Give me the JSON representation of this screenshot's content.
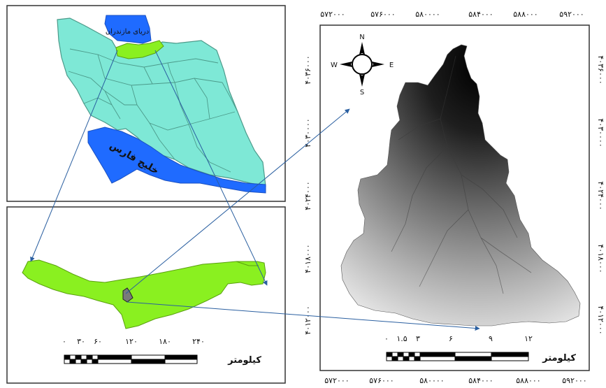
{
  "iran_map": {
    "caspian_label": "دریای مازندران",
    "gulf_label": "خلیج فارس",
    "colors": {
      "land": "#7ee8d6",
      "water": "#1f6bff",
      "province": "#8af020",
      "border": "#4c9a8a"
    }
  },
  "province_map": {
    "scale_ticks": [
      "۰",
      "۳۰",
      "۶۰",
      "۱۲۰",
      "۱۸۰",
      "۲۴۰"
    ],
    "scale_unit": "کیلومتر",
    "colors": {
      "land": "#8af020",
      "outline": "#5aa010"
    }
  },
  "watershed_map": {
    "top_ticks": [
      "۵۷۲۰۰۰",
      "۵۷۶۰۰۰",
      "۵۸۰۰۰۰",
      "۵۸۴۰۰۰",
      "۵۸۸۰۰۰",
      "۵۹۲۰۰۰"
    ],
    "bottom_ticks": [
      "۵۷۲۰۰۰",
      "۵۷۶۰۰۰",
      "۵۸۰۰۰۰",
      "۵۸۴۰۰۰",
      "۵۸۸۰۰۰",
      "۵۹۲۰۰۰"
    ],
    "left_ticks": [
      "۴۰۳۶۰۰۰",
      "۴۰۳۰۰۰۰",
      "۴۰۲۴۰۰۰",
      "۴۰۱۸۰۰۰",
      "۴۰۱۲۰۰۰"
    ],
    "right_ticks": [
      "۴۰۳۶۰۰۰",
      "۴۰۳۰۰۰۰",
      "۴۰۲۴۰۰۰",
      "۴۰۱۸۰۰۰",
      "۴۰۱۲۰۰۰"
    ],
    "scale_ticks": [
      "۰",
      "۱.۵",
      "۳",
      "۶",
      "۹",
      "۱۲"
    ],
    "scale_unit": "کیلومتر",
    "compass": {
      "n": "N",
      "s": "S",
      "e": "E",
      "w": "W"
    }
  },
  "connector_color": "#2a5fa0"
}
